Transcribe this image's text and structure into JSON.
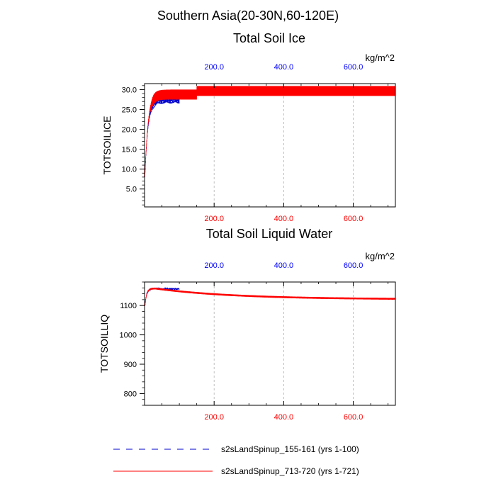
{
  "figure": {
    "region_title": "Southern Asia(20-30N,60-120E)"
  },
  "chart_data": [
    {
      "type": "line",
      "title": "Total Soil Ice",
      "units": "kg/m^2",
      "ylabel": "TOTSOILICE",
      "xlabel": "",
      "xlim": [
        0,
        721
      ],
      "ylim": [
        0.5,
        31.5
      ],
      "yticks": [
        5,
        10,
        15,
        20,
        25,
        30
      ],
      "ytick_labels": [
        "5.0",
        "10.0",
        "15.0",
        "20.0",
        "25.0",
        "30.0"
      ],
      "xticks": [
        200,
        400,
        600
      ],
      "xtick_labels": [
        "200.0",
        "400.0",
        "600.0"
      ],
      "top_tick_color": "#0000ff",
      "bottom_tick_color": "#ff0000",
      "grid": "vertical-dashed",
      "series": [
        {
          "name": "s2sLandSpinup_155-161 (yrs 1-100)",
          "color": "#0000cc",
          "dash": "dashed",
          "x_range": [
            1,
            100
          ],
          "start": 8.0,
          "low": 26.5,
          "high": 29.2,
          "tau": 9,
          "cycles": 36
        },
        {
          "name": "s2sLandSpinup_713-720 (yrs 1-721)",
          "color": "#ff0000",
          "dash": "solid",
          "x_range": [
            1,
            721
          ],
          "start": 8.0,
          "low": 27.5,
          "high": 30.0,
          "tau": 9,
          "cycles": 200
        }
      ]
    },
    {
      "type": "line",
      "title": "Total Soil Liquid Water",
      "units": "kg/m^2",
      "ylabel": "TOTSOILLIQ",
      "xlabel": "",
      "xlim": [
        0,
        721
      ],
      "ylim": [
        760,
        1180
      ],
      "yticks": [
        800,
        900,
        1000,
        1100
      ],
      "ytick_labels": [
        "800",
        "900",
        "1000",
        "1100"
      ],
      "xticks": [
        200,
        400,
        600
      ],
      "xtick_labels": [
        "200.0",
        "400.0",
        "600.0"
      ],
      "top_tick_color": "#0000ff",
      "bottom_tick_color": "#ff0000",
      "grid": "vertical-dashed",
      "series": [
        {
          "name": "s2sLandSpinup_155-161 (yrs 1-100)",
          "color": "#0000cc",
          "dash": "dashed",
          "x_range": [
            1,
            100
          ],
          "start": 1098,
          "peak": 1158,
          "end": 1150,
          "amp": 3
        },
        {
          "name": "s2sLandSpinup_713-720 (yrs 1-721)",
          "color": "#ff0000",
          "dash": "solid",
          "x_range": [
            1,
            721
          ],
          "start": 1098,
          "peak": 1158,
          "end": 1121,
          "amp": 3
        }
      ]
    }
  ],
  "legend": {
    "placement": "bottom",
    "entries": [
      {
        "label": "s2sLandSpinup_155-161 (yrs 1-100)",
        "color": "#0000cc",
        "dash": "dashed"
      },
      {
        "label": "s2sLandSpinup_713-720 (yrs 1-721)",
        "color": "#ff0000",
        "dash": "solid"
      }
    ]
  }
}
